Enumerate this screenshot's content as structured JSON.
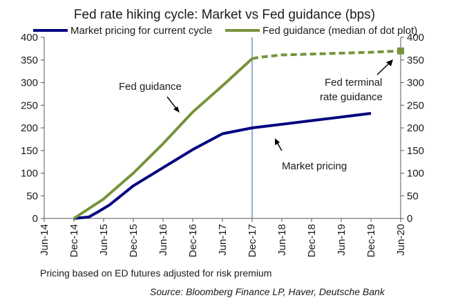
{
  "chart_data": {
    "type": "line",
    "title": "Fed rate hiking cycle: Market vs Fed guidance (bps)",
    "x_categories": [
      "Jun-14",
      "Dec-14",
      "Jun-15",
      "Dec-15",
      "Jun-16",
      "Dec-16",
      "Jun-17",
      "Dec-17",
      "Jun-18",
      "Dec-18",
      "Jun-19",
      "Dec-19",
      "Jun-20"
    ],
    "ylim": [
      0,
      400
    ],
    "y_ticks": [
      0,
      50,
      100,
      150,
      200,
      250,
      300,
      350,
      400
    ],
    "series": [
      {
        "name": "Market pricing for current cycle",
        "color": "#000080",
        "style": "solid",
        "points": [
          [
            1,
            0
          ],
          [
            1.5,
            3
          ],
          [
            1.8,
            14
          ],
          [
            2.2,
            30
          ],
          [
            3,
            72
          ],
          [
            4,
            112
          ],
          [
            5,
            152
          ],
          [
            6,
            187
          ],
          [
            7,
            200
          ],
          [
            8,
            208
          ],
          [
            9,
            216
          ],
          [
            10,
            224
          ],
          [
            11,
            232
          ]
        ]
      },
      {
        "name": "Fed guidance (median of dot plot)",
        "color": "#77933c",
        "style": "solid",
        "points": [
          [
            1,
            0
          ],
          [
            2,
            43
          ],
          [
            3,
            100
          ],
          [
            4,
            165
          ],
          [
            5,
            235
          ],
          [
            6,
            293
          ],
          [
            7,
            353
          ]
        ]
      },
      {
        "name": "Fed guidance (median of dot plot)",
        "color": "#77933c",
        "style": "dashed",
        "points": [
          [
            7,
            353
          ],
          [
            7.25,
            356
          ],
          [
            8,
            361
          ],
          [
            9,
            363
          ],
          [
            10,
            365
          ],
          [
            11,
            367
          ],
          [
            12,
            370
          ]
        ]
      }
    ],
    "end_marker": {
      "x": 12,
      "y": 370,
      "color": "#77933c"
    },
    "vertical_line": {
      "x": 7,
      "color": "#4a74c9"
    },
    "legend": [
      "Market pricing for current cycle",
      "Fed guidance (median of dot plot)"
    ],
    "annotations": {
      "fed_guidance": "Fed guidance",
      "fed_terminal_1": "Fed terminal",
      "fed_terminal_2": "rate guidance",
      "market_pricing": "Market pricing"
    },
    "note": "Pricing based on ED futures adjusted for risk premium",
    "source": "Source: Bloomberg Finance LP, Haver, Deutsche Bank"
  }
}
